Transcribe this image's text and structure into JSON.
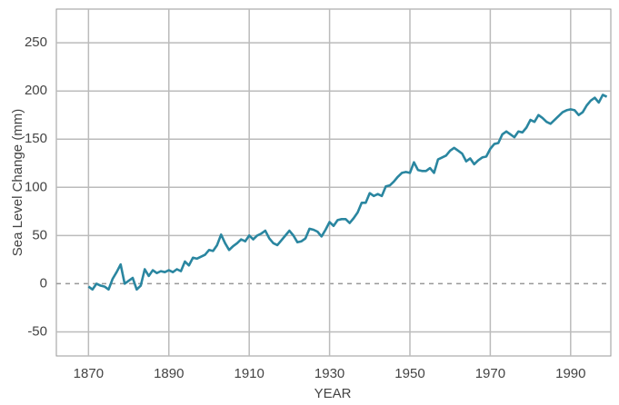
{
  "chart_data": {
    "type": "line",
    "y_label": "Sea Level Change (mm)",
    "x_label": "YEAR",
    "x": [
      1870,
      1871,
      1872,
      1873,
      1874,
      1875,
      1876,
      1877,
      1878,
      1879,
      1880,
      1881,
      1882,
      1883,
      1884,
      1885,
      1886,
      1887,
      1888,
      1889,
      1890,
      1891,
      1892,
      1893,
      1894,
      1895,
      1896,
      1897,
      1898,
      1899,
      1900,
      1901,
      1902,
      1903,
      1904,
      1905,
      1906,
      1907,
      1908,
      1909,
      1910,
      1911,
      1912,
      1913,
      1914,
      1915,
      1916,
      1917,
      1918,
      1919,
      1920,
      1921,
      1922,
      1923,
      1924,
      1925,
      1926,
      1927,
      1928,
      1929,
      1930,
      1931,
      1932,
      1933,
      1934,
      1935,
      1936,
      1937,
      1938,
      1939,
      1940,
      1941,
      1942,
      1943,
      1944,
      1945,
      1946,
      1947,
      1948,
      1949,
      1950,
      1951,
      1952,
      1953,
      1954,
      1955,
      1956,
      1957,
      1958,
      1959,
      1960,
      1961,
      1962,
      1963,
      1964,
      1965,
      1966,
      1967,
      1968,
      1969,
      1970,
      1971,
      1972,
      1973,
      1974,
      1975,
      1976,
      1977,
      1978,
      1979,
      1980,
      1981,
      1982,
      1983,
      1984,
      1985,
      1986,
      1987,
      1988,
      1989,
      1990,
      1991,
      1992,
      1993,
      1994,
      1995,
      1996,
      1997,
      1998,
      1999
    ],
    "series": [
      {
        "color": "#2a86a0",
        "values": [
          -3,
          -6,
          0,
          -2,
          -3,
          -6,
          5,
          12,
          20,
          0,
          3,
          6,
          -6,
          -2,
          15,
          8,
          14,
          11,
          13,
          12,
          14,
          12,
          15,
          13,
          23,
          19,
          27,
          26,
          28,
          30,
          35,
          34,
          40,
          51,
          42,
          35,
          39,
          42,
          46,
          44,
          50,
          46,
          50,
          52,
          55,
          47,
          42,
          40,
          45,
          50,
          55,
          50,
          43,
          44,
          47,
          57,
          56,
          54,
          49,
          56,
          64,
          60,
          66,
          67,
          67,
          63,
          68,
          74,
          84,
          84,
          94,
          91,
          93,
          91,
          101,
          102,
          106,
          111,
          115,
          116,
          115,
          126,
          118,
          117,
          117,
          120,
          115,
          129,
          131,
          133,
          138,
          141,
          138,
          135,
          127,
          130,
          124,
          128,
          131,
          132,
          140,
          145,
          146,
          155,
          158,
          155,
          152,
          158,
          157,
          162,
          170,
          168,
          175,
          172,
          168,
          166,
          170,
          174,
          178,
          180,
          181,
          180,
          175,
          178,
          185,
          190,
          193,
          188,
          196,
          194
        ]
      }
    ],
    "xlim": [
      1862,
      2000
    ],
    "xticks": [
      1870,
      1890,
      1910,
      1930,
      1950,
      1970,
      1990
    ],
    "ylim": [
      -75,
      285
    ],
    "yticks": [
      -50,
      0,
      50,
      100,
      150,
      200,
      250
    ],
    "grid": true
  }
}
